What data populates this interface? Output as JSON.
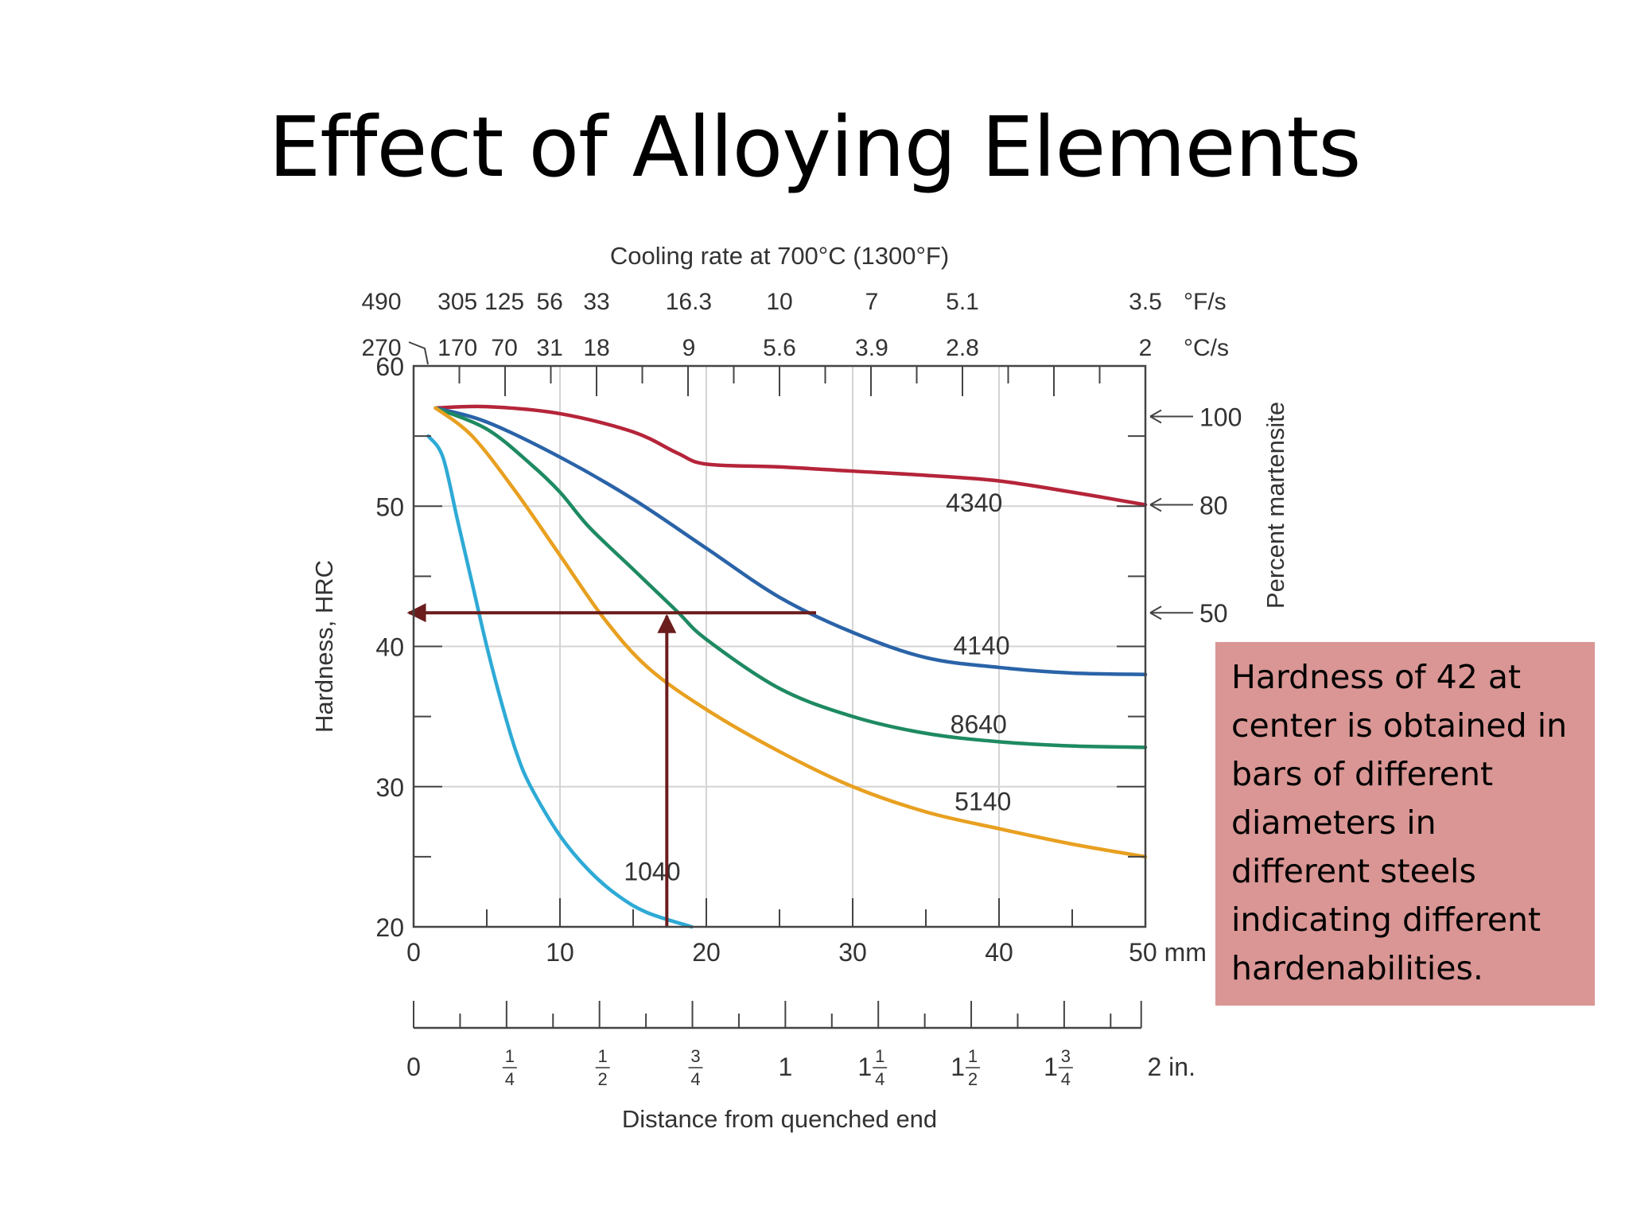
{
  "slide": {
    "title": "Effect of Alloying Elements",
    "callout": "Hardness of 42 at center is obtained in bars of different diameters in different steels indicating different hardenabilities."
  },
  "chart_data": {
    "type": "line",
    "title": "Cooling rate at 700°C (1300°F)",
    "xlabel": "Distance from quenched end",
    "ylabel": "Hardness, HRC",
    "y2label": "Percent martensite",
    "xlim": [
      0,
      50
    ],
    "ylim": [
      20,
      60
    ],
    "grid": true,
    "x_ticks": [
      {
        "value": 0,
        "label": "0"
      },
      {
        "value": 10,
        "label": "10"
      },
      {
        "value": 20,
        "label": "20"
      },
      {
        "value": 30,
        "label": "30"
      },
      {
        "value": 40,
        "label": "40"
      },
      {
        "value": 50,
        "label": "50 mm"
      }
    ],
    "y_ticks": [
      {
        "value": 20,
        "label": "20"
      },
      {
        "value": 30,
        "label": "30"
      },
      {
        "value": 40,
        "label": "40"
      },
      {
        "value": 50,
        "label": "50"
      },
      {
        "value": 60,
        "label": "60"
      }
    ],
    "inch_ticks": [
      {
        "value": 0,
        "whole": "0",
        "num": "",
        "den": ""
      },
      {
        "value": 6.35,
        "whole": "",
        "num": "1",
        "den": "4"
      },
      {
        "value": 12.7,
        "whole": "",
        "num": "1",
        "den": "2"
      },
      {
        "value": 19.05,
        "whole": "",
        "num": "3",
        "den": "4"
      },
      {
        "value": 25.4,
        "whole": "1",
        "num": "",
        "den": ""
      },
      {
        "value": 31.75,
        "whole": "1",
        "num": "1",
        "den": "4"
      },
      {
        "value": 38.1,
        "whole": "1",
        "num": "1",
        "den": "2"
      },
      {
        "value": 44.45,
        "whole": "1",
        "num": "3",
        "den": "4"
      },
      {
        "value": 50.8,
        "whole": "2 in.",
        "num": "",
        "den": ""
      }
    ],
    "cooling_rate_F": {
      "unit": "°F/s",
      "ticks": [
        {
          "value": -2.2,
          "label": "490"
        },
        {
          "value": 3.0,
          "label": "305"
        },
        {
          "value": 6.2,
          "label": "125"
        },
        {
          "value": 9.3,
          "label": "56"
        },
        {
          "value": 12.5,
          "label": "33"
        },
        {
          "value": 18.8,
          "label": "16.3"
        },
        {
          "value": 25.0,
          "label": "10"
        },
        {
          "value": 31.3,
          "label": "7"
        },
        {
          "value": 37.5,
          "label": "5.1"
        },
        {
          "value": 50.0,
          "label": "3.5"
        }
      ]
    },
    "cooling_rate_C": {
      "unit": "°C/s",
      "ticks": [
        {
          "value": -2.2,
          "label": "270"
        },
        {
          "value": 3.0,
          "label": "170"
        },
        {
          "value": 6.2,
          "label": "70"
        },
        {
          "value": 9.3,
          "label": "31"
        },
        {
          "value": 12.5,
          "label": "18"
        },
        {
          "value": 18.8,
          "label": "9"
        },
        {
          "value": 25.0,
          "label": "5.6"
        },
        {
          "value": 31.3,
          "label": "3.9"
        },
        {
          "value": 37.5,
          "label": "2.8"
        },
        {
          "value": 50.0,
          "label": "2"
        }
      ]
    },
    "martensite_marks": [
      {
        "hrc": 56.4,
        "label": "100"
      },
      {
        "hrc": 50.1,
        "label": "80"
      },
      {
        "hrc": 42.4,
        "label": "50"
      }
    ],
    "series": [
      {
        "name": "4340",
        "color": "#b5253a",
        "label_pos": [
          38.3,
          50.3
        ],
        "points": [
          [
            1.5,
            57
          ],
          [
            5,
            57.1
          ],
          [
            10,
            56.6
          ],
          [
            15,
            55.3
          ],
          [
            18,
            53.8
          ],
          [
            20,
            53
          ],
          [
            25,
            52.8
          ],
          [
            30,
            52.5
          ],
          [
            35,
            52.2
          ],
          [
            40,
            51.8
          ],
          [
            45,
            51
          ],
          [
            50,
            50.1
          ]
        ]
      },
      {
        "name": "4140",
        "color": "#2a63a8",
        "label_pos": [
          38.8,
          40.1
        ],
        "points": [
          [
            1.5,
            57
          ],
          [
            5,
            56
          ],
          [
            10,
            53.5
          ],
          [
            15,
            50.5
          ],
          [
            20,
            47
          ],
          [
            25,
            43.5
          ],
          [
            30,
            41
          ],
          [
            35,
            39.2
          ],
          [
            40,
            38.5
          ],
          [
            45,
            38.1
          ],
          [
            50,
            38
          ]
        ]
      },
      {
        "name": "8640",
        "color": "#1e8a62",
        "label_pos": [
          38.6,
          34.5
        ],
        "points": [
          [
            1.5,
            57
          ],
          [
            5,
            55.5
          ],
          [
            8,
            53
          ],
          [
            10,
            51
          ],
          [
            12,
            48.5
          ],
          [
            15,
            45.5
          ],
          [
            18,
            42.5
          ],
          [
            20,
            40.5
          ],
          [
            25,
            37
          ],
          [
            30,
            35
          ],
          [
            35,
            33.8
          ],
          [
            40,
            33.2
          ],
          [
            45,
            32.9
          ],
          [
            50,
            32.8
          ]
        ]
      },
      {
        "name": "5140",
        "color": "#e8a020",
        "label_pos": [
          38.9,
          29
        ],
        "points": [
          [
            1.5,
            57
          ],
          [
            4,
            55
          ],
          [
            7,
            51
          ],
          [
            10,
            46.5
          ],
          [
            13,
            42
          ],
          [
            16,
            38.5
          ],
          [
            20,
            35.5
          ],
          [
            25,
            32.5
          ],
          [
            30,
            30
          ],
          [
            35,
            28.2
          ],
          [
            40,
            27
          ],
          [
            45,
            25.9
          ],
          [
            50,
            25
          ]
        ]
      },
      {
        "name": "1040",
        "color": "#2eaad6",
        "label_pos": [
          16.3,
          24
        ],
        "points": [
          [
            1,
            55
          ],
          [
            2,
            53.5
          ],
          [
            3,
            49
          ],
          [
            4,
            44.5
          ],
          [
            5,
            40
          ],
          [
            6,
            36
          ],
          [
            7,
            32.5
          ],
          [
            8,
            30
          ],
          [
            10,
            26.5
          ],
          [
            12,
            24
          ],
          [
            14,
            22.2
          ],
          [
            16,
            21
          ],
          [
            19,
            20
          ]
        ]
      }
    ],
    "annotation": {
      "hardness": 42.4,
      "x_end": 27.5,
      "x_drop": 17.3,
      "color": "#6b1c1c"
    }
  }
}
